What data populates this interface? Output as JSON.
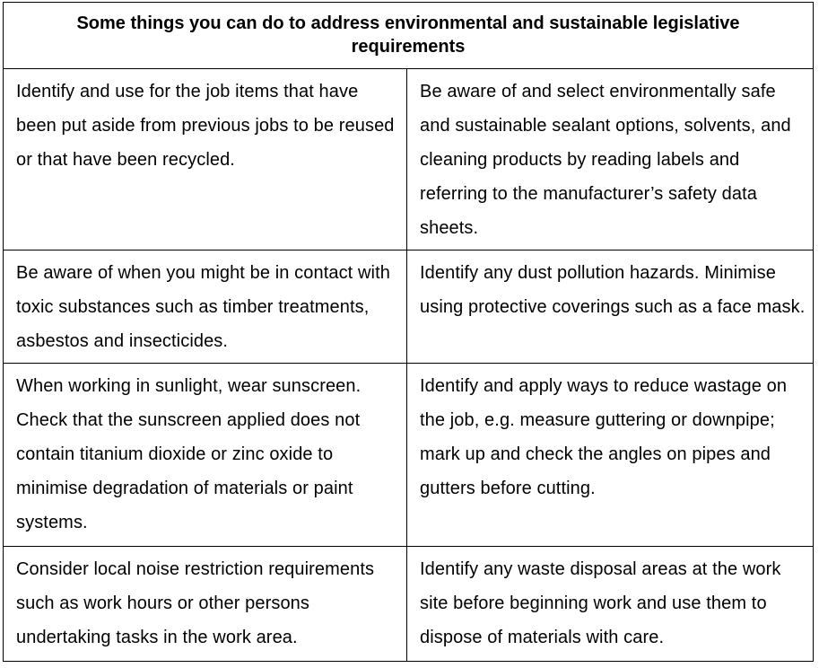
{
  "table": {
    "title": "Some things you can do to address environmental and sustainable legislative requirements",
    "rows": [
      {
        "left": "Identify and use for the job items that have been put aside from previous jobs to be reused or that have been recycled.",
        "right": "Be aware of and select environmentally safe and sustainable sealant options, solvents, and cleaning products by reading labels and referring to the manufacturer’s safety data sheets."
      },
      {
        "left": "Be aware of when you might be in contact with toxic substances such as timber treatments, asbestos and insecticides.",
        "right": "Identify any dust pollution hazards. Minimise using protective coverings such as a face mask."
      },
      {
        "left": "When working in sunlight, wear sunscreen. Check that the sunscreen applied does not contain titanium dioxide or zinc oxide to minimise degradation of materials or paint systems.",
        "right": "Identify and apply ways to reduce wastage on the job, e.g. measure guttering or downpipe; mark up and check the angles on pipes and gutters before cutting."
      },
      {
        "left": "Consider local noise restriction requirements such as work hours or other persons undertaking tasks in the work area.",
        "right": "Identify any waste disposal areas at the work site before beginning work and use them to dispose of materials with care."
      }
    ]
  }
}
